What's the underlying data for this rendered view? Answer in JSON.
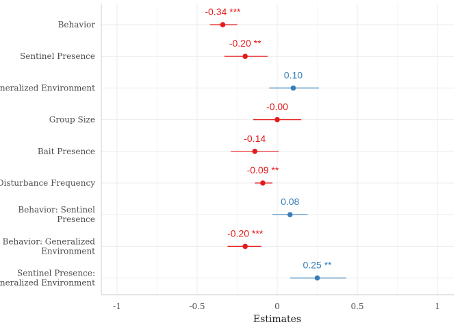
{
  "chart_data": {
    "type": "forest",
    "xlabel": "Estimates",
    "xlim": [
      -1.15,
      1.1
    ],
    "xticks": [
      -1,
      -0.5,
      0,
      0.5,
      1
    ],
    "xtick_labels": [
      "-1",
      "-0.5",
      "0",
      "0.5",
      "1"
    ],
    "grid": true,
    "colors": {
      "negative": "#e41a1c",
      "positive": "#377eb8"
    },
    "items": [
      {
        "lines": [
          "Behavior"
        ],
        "estimate": -0.34,
        "ci": [
          -0.42,
          -0.25
        ],
        "label": "-0.34 ***",
        "sign": "negative"
      },
      {
        "lines": [
          "Sentinel Presence"
        ],
        "estimate": -0.2,
        "ci": [
          -0.33,
          -0.06
        ],
        "label": "-0.20 **",
        "sign": "negative"
      },
      {
        "lines": [
          "Generalized Environment"
        ],
        "estimate": 0.1,
        "ci": [
          -0.05,
          0.26
        ],
        "label": "0.10",
        "sign": "positive"
      },
      {
        "lines": [
          "Group Size"
        ],
        "estimate": -0.0,
        "ci": [
          -0.15,
          0.15
        ],
        "label": "-0.00",
        "sign": "negative"
      },
      {
        "lines": [
          "Bait Presence"
        ],
        "estimate": -0.14,
        "ci": [
          -0.29,
          0.01
        ],
        "label": "-0.14",
        "sign": "negative"
      },
      {
        "lines": [
          "Disturbance Frequency"
        ],
        "estimate": -0.09,
        "ci": [
          -0.14,
          -0.03
        ],
        "label": "-0.09 **",
        "sign": "negative"
      },
      {
        "lines": [
          "Behavior: Sentinel",
          "Presence"
        ],
        "estimate": 0.08,
        "ci": [
          -0.03,
          0.19
        ],
        "label": "0.08",
        "sign": "positive"
      },
      {
        "lines": [
          "Behavior: Generalized",
          "Environment"
        ],
        "estimate": -0.2,
        "ci": [
          -0.31,
          -0.1
        ],
        "label": "-0.20 ***",
        "sign": "negative"
      },
      {
        "lines": [
          "Sentinel Presence:",
          "Generalized Environment"
        ],
        "estimate": 0.25,
        "ci": [
          0.08,
          0.43
        ],
        "label": "0.25 **",
        "sign": "positive"
      }
    ]
  }
}
